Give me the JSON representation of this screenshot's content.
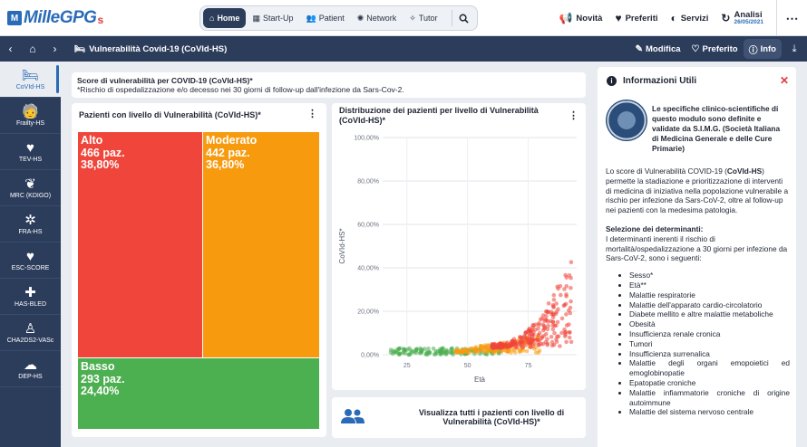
{
  "app": {
    "logo_mark": "M",
    "logo_text": "MilleGPG",
    "logo_suffix": "s"
  },
  "topnav": {
    "items": [
      {
        "label": "Home",
        "icon": "home-icon"
      },
      {
        "label": "Start-Up",
        "icon": "grid-icon"
      },
      {
        "label": "Patient",
        "icon": "users-icon"
      },
      {
        "label": "Network",
        "icon": "network-icon"
      },
      {
        "label": "Tutor",
        "icon": "wand-icon"
      }
    ],
    "right": {
      "novita": "Novità",
      "preferiti": "Preferiti",
      "servizi": "Servizi",
      "analisi": "Analisi",
      "analisi_date": "26/05/2021"
    }
  },
  "subbar": {
    "title": "Vulnerabilità Covid-19 (CoVId-HS)",
    "modifica": "Modifica",
    "preferito": "Preferito",
    "info": "Info"
  },
  "sidebar": {
    "items": [
      {
        "label": "CoVId-HS",
        "icon": "bed-icon"
      },
      {
        "label": "Frailty-HS",
        "icon": "walking-cane-icon"
      },
      {
        "label": "TEV-HS",
        "icon": "heart-pulse-icon"
      },
      {
        "label": "MRC (KDIGO)",
        "icon": "kidneys-icon"
      },
      {
        "label": "FRA-HS",
        "icon": "bone-icon"
      },
      {
        "label": "ESC-SCORE",
        "icon": "heart-pulse-icon"
      },
      {
        "label": "HAS-BLED",
        "icon": "blood-drop-icon"
      },
      {
        "label": "CHA2DS2-VASc",
        "icon": "person-icon"
      },
      {
        "label": "DEP-HS",
        "icon": "head-icon"
      }
    ]
  },
  "score": {
    "title": "Score di vulnerabilità per COVID-19 (CoVId-HS)*",
    "note": "*Rischio di ospedalizzazione e/o decesso nei 30 giorni di follow-up dall'infezione da Sars-Cov-2."
  },
  "treemap_card": {
    "title": "Pazienti con livello di Vulnerabilità (CoVId-HS)*",
    "cells": [
      {
        "level": "Alto",
        "patients": "466 paz.",
        "percent": "38,80%",
        "color": "#f0453a"
      },
      {
        "level": "Moderato",
        "patients": "442 paz.",
        "percent": "36,80%",
        "color": "#f79a0e"
      },
      {
        "level": "Basso",
        "patients": "293 paz.",
        "percent": "24,40%",
        "color": "#4caf50"
      }
    ]
  },
  "scatter_card": {
    "title_line1": "Distribuzione dei pazienti per livello di Vulnerabilità",
    "title_line2": "(CoVId-HS)*"
  },
  "chart_data": {
    "type": "scatter",
    "title": "Distribuzione dei pazienti per livello di Vulnerabilità (CoVId-HS)*",
    "xlabel": "Età",
    "ylabel": "CoVId-HS*",
    "xlim": [
      15,
      95
    ],
    "ylim": [
      0,
      100
    ],
    "x_ticks": [
      "25",
      "50",
      "75"
    ],
    "y_ticks": [
      "0,00%",
      "20,00%",
      "40,00%",
      "60,00%",
      "80,00%",
      "100,00%"
    ],
    "grid": true,
    "series": [
      {
        "name": "Basso",
        "color": "#4caf50",
        "x_range": [
          18,
          65
        ],
        "y_range": [
          0,
          3
        ]
      },
      {
        "name": "Moderato",
        "color": "#f79a0e",
        "x_range": [
          45,
          80
        ],
        "y_range": [
          1,
          8
        ]
      },
      {
        "name": "Alto",
        "color": "#f0453a",
        "x_range": [
          60,
          93
        ],
        "y_range": [
          3,
          45
        ]
      }
    ]
  },
  "patients_card": {
    "text_line1": "Visualizza tutti i pazienti con livello di",
    "text_line2": "Vulnerabilità (CoVId-HS)*"
  },
  "info": {
    "title": "Informazioni Utili",
    "seal_text": "Le specifiche clinico-scientifiche di questo modulo sono definite e validate da S.I.M.G. (Società Italiana di Medicina Generale e delle Cure Primarie)",
    "para1_a": "Lo score di Vulnerabilità COVID-19 (",
    "para1_b": "CoVId-HS",
    "para1_c": ") permette la stadiazione e prioritizzazione di interventi di medicina di iniziativa nella popolazione vulnerabile a rischio per infezione da Sars-CoV-2, oltre al follow-up nei pazienti con la medesima patologia.",
    "determinanti_title": "Selezione dei determinanti:",
    "determinanti_text": "I determinanti inerenti il rischio di mortalità/ospedalizzazione a 30 giorni per infezione da Sars-CoV-2, sono i seguenti:",
    "list": [
      "Sesso*",
      "Età**",
      "Malattie respiratorie",
      "Malattie dell'apparato cardio-circolatorio",
      "Diabete mellito e altre malattie metaboliche",
      "Obesità",
      "Insufficienza renale cronica",
      "Tumori",
      "Insufficienza surrenalica",
      "Malattie degli organi emopoietici ed emoglobinopatie",
      "Epatopatie croniche",
      "Malattie infiammatorie croniche di origine autoimmune",
      "Malattie del sistema nervoso centrale"
    ]
  }
}
